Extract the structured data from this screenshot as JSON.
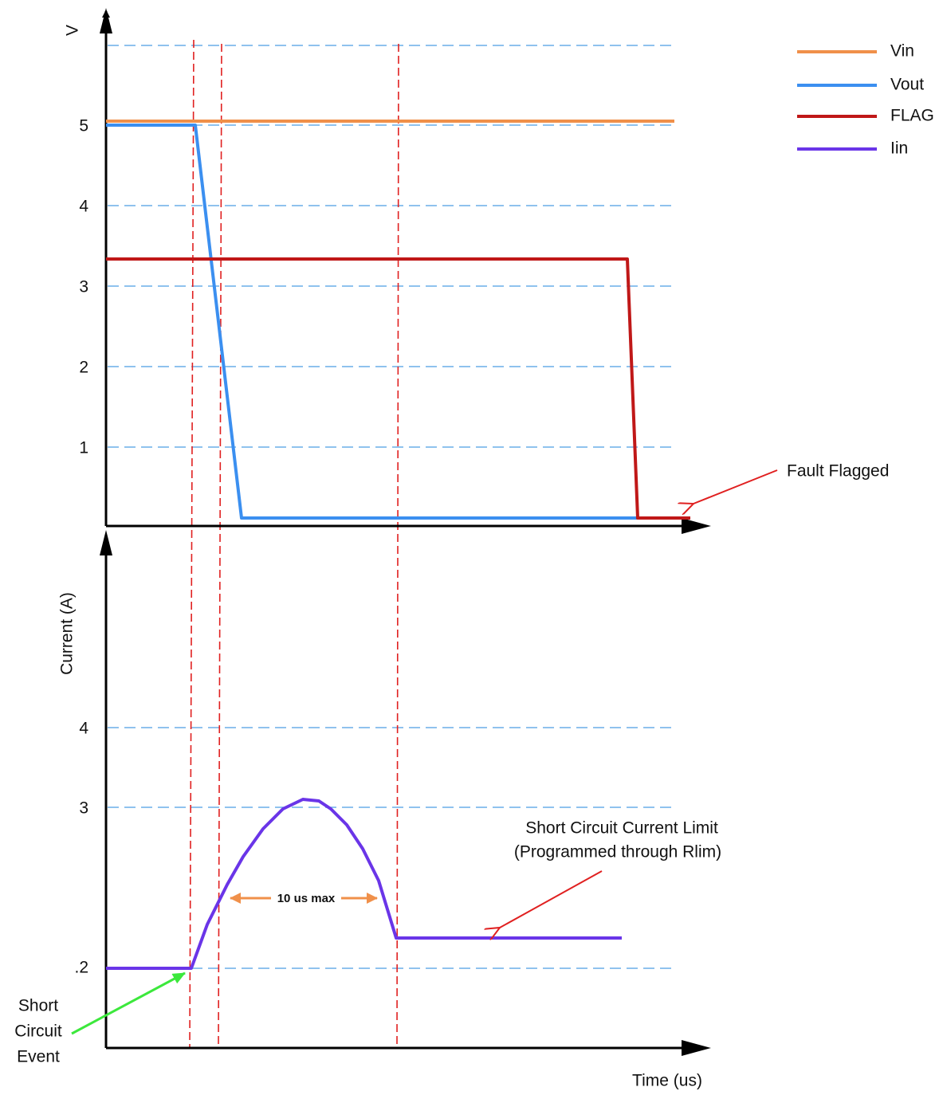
{
  "upper_plot": {
    "axis_label": "V",
    "ticks": [
      "5",
      "4",
      "3",
      "2",
      "1"
    ]
  },
  "lower_plot": {
    "axis_label": "Current (A)",
    "ticks": [
      "4",
      "3",
      ".2"
    ]
  },
  "legend": [
    "Vin",
    "Vout",
    "FLAG",
    "Iin"
  ],
  "annotations": {
    "fault": "Fault Flagged",
    "limit": [
      "Short Circuit Current Limit",
      "(Programmed through Rlim)"
    ],
    "duration": "10 us max",
    "event": [
      "Short",
      "Circuit",
      "Event"
    ]
  },
  "x_axis_label": "Time (us)"
}
